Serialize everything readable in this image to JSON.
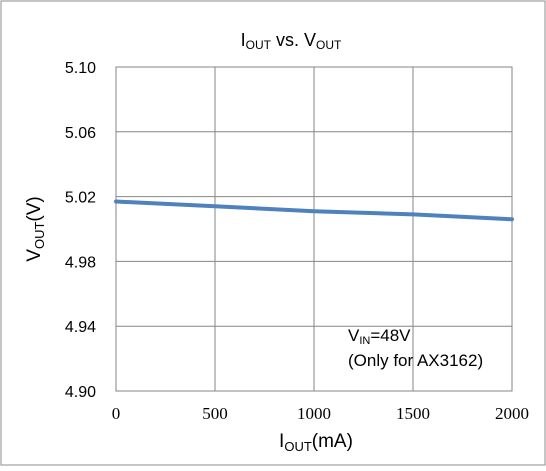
{
  "chart_data": {
    "type": "line",
    "title": {
      "main": "I",
      "sub": "OUT",
      "mid": " vs. V",
      "sub2": "OUT"
    },
    "xlabel": {
      "main": "I",
      "sub": "OUT",
      "tail": "(mA)"
    },
    "ylabel": {
      "main": "V",
      "sub": "OUT",
      "tail": "(V)"
    },
    "xlim": [
      0,
      2000
    ],
    "ylim": [
      4.9,
      5.1
    ],
    "xticks": [
      0,
      500,
      1000,
      1500,
      2000
    ],
    "yticks": [
      "4.90",
      "4.94",
      "4.98",
      "5.02",
      "5.06",
      "5.10"
    ],
    "grid": true,
    "series": [
      {
        "color": "#4f81bd",
        "x": [
          0,
          500,
          1000,
          1500,
          2000
        ],
        "y": [
          5.017,
          5.014,
          5.011,
          5.009,
          5.006
        ]
      }
    ],
    "annotation": {
      "line1_main": "V",
      "line1_sub": "IN",
      "line1_tail": "=48V",
      "line2": "(Only for AX3162)"
    }
  }
}
